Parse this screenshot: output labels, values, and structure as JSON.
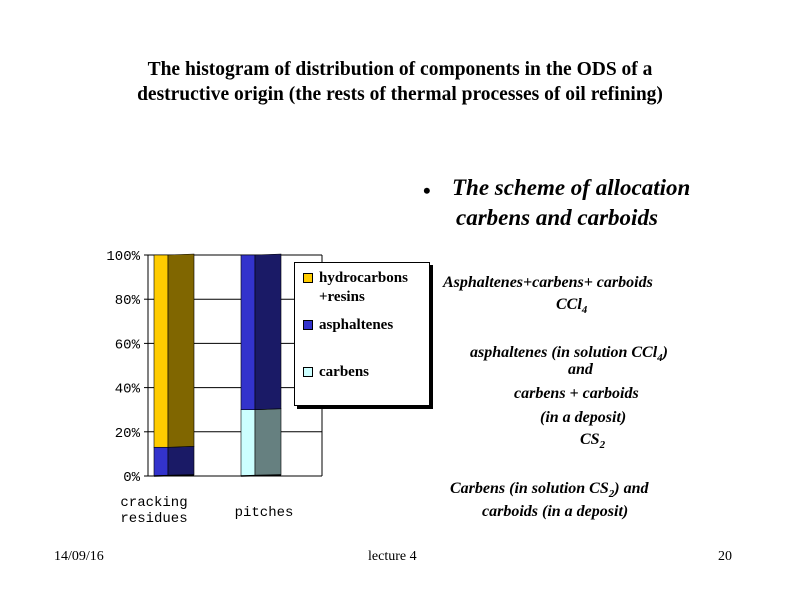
{
  "title": {
    "line1": "The histogram of distribution of components in the ODS of a",
    "line2": "destructive origin (the rests of thermal processes of oil refining)"
  },
  "chart_data": {
    "type": "bar",
    "stacked": true,
    "categories": [
      "cracking residues",
      "pitches"
    ],
    "series": [
      {
        "name": "carbens",
        "values": [
          0,
          30
        ],
        "color": "#CCFFFF"
      },
      {
        "name": "asphaltenes",
        "values": [
          13,
          70
        ],
        "color": "#3333CC"
      },
      {
        "name": "hydrocarbons +resins",
        "values": [
          87,
          0
        ],
        "color": "#FFCC00"
      }
    ],
    "y_ticks": [
      "0%",
      "20%",
      "40%",
      "60%",
      "80%",
      "100%"
    ],
    "ylim": [
      0,
      100
    ],
    "grid": true,
    "legend_position": "right"
  },
  "legend": {
    "items": [
      {
        "line1": "hydrocarbons",
        "line2": "+resins",
        "color": "#FFCC00"
      },
      {
        "line1": "asphaltenes",
        "color": "#3333CC"
      },
      {
        "line1": "carbens",
        "color": "#CCFFFF"
      }
    ]
  },
  "category_labels": {
    "cat1_line1": "cracking",
    "cat1_line2": "residues",
    "cat2": "pitches"
  },
  "scheme": {
    "bullet": "•",
    "heading_line1": "The scheme of allocation",
    "heading_line2": "carbens and carboids",
    "reagent1_text": "Asphaltenes+carbens+ carboids",
    "solvent1": "CCl",
    "solvent1_sub": "4",
    "result1_a": "asphaltenes (in solution CCl",
    "result1_a_sub": "4",
    "result1_a_end": ")",
    "result1_b": "and",
    "result1_c": "carbens + carboids",
    "result1_d": "(in a deposit)",
    "solvent2": "CS",
    "solvent2_sub": "2",
    "result2_a": "Carbens (in solution CS",
    "result2_a_sub": "2",
    "result2_a_end": ") and",
    "result2_b": "carboids (in a deposit)"
  },
  "footer": {
    "date": "14/09/16",
    "center": "lecture 4",
    "page": "20"
  }
}
